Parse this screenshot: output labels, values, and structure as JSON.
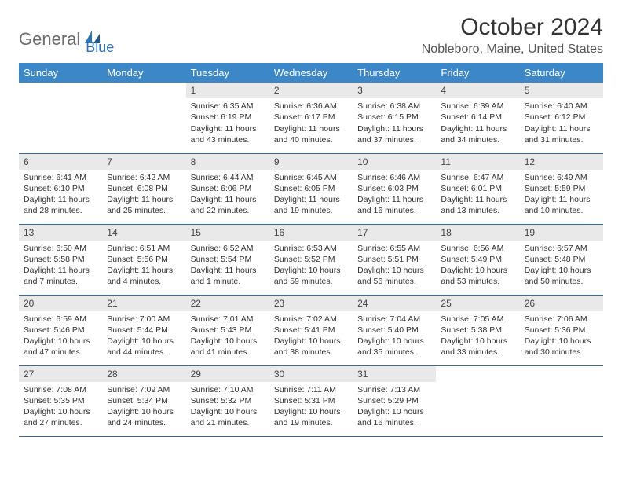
{
  "logo": {
    "part1": "General",
    "part2": "Blue"
  },
  "title": "October 2024",
  "location": "Nobleboro, Maine, United States",
  "colors": {
    "header_bg": "#3b87c8",
    "header_text": "#ffffff",
    "daynum_bg": "#e9e9e9",
    "border": "#3b6a94",
    "logo_gray": "#6d6d6d",
    "logo_blue": "#2b74b8"
  },
  "weekdays": [
    "Sunday",
    "Monday",
    "Tuesday",
    "Wednesday",
    "Thursday",
    "Friday",
    "Saturday"
  ],
  "weeks": [
    [
      null,
      null,
      {
        "n": "1",
        "sunrise": "6:35 AM",
        "sunset": "6:19 PM",
        "daylight": "11 hours and 43 minutes."
      },
      {
        "n": "2",
        "sunrise": "6:36 AM",
        "sunset": "6:17 PM",
        "daylight": "11 hours and 40 minutes."
      },
      {
        "n": "3",
        "sunrise": "6:38 AM",
        "sunset": "6:15 PM",
        "daylight": "11 hours and 37 minutes."
      },
      {
        "n": "4",
        "sunrise": "6:39 AM",
        "sunset": "6:14 PM",
        "daylight": "11 hours and 34 minutes."
      },
      {
        "n": "5",
        "sunrise": "6:40 AM",
        "sunset": "6:12 PM",
        "daylight": "11 hours and 31 minutes."
      }
    ],
    [
      {
        "n": "6",
        "sunrise": "6:41 AM",
        "sunset": "6:10 PM",
        "daylight": "11 hours and 28 minutes."
      },
      {
        "n": "7",
        "sunrise": "6:42 AM",
        "sunset": "6:08 PM",
        "daylight": "11 hours and 25 minutes."
      },
      {
        "n": "8",
        "sunrise": "6:44 AM",
        "sunset": "6:06 PM",
        "daylight": "11 hours and 22 minutes."
      },
      {
        "n": "9",
        "sunrise": "6:45 AM",
        "sunset": "6:05 PM",
        "daylight": "11 hours and 19 minutes."
      },
      {
        "n": "10",
        "sunrise": "6:46 AM",
        "sunset": "6:03 PM",
        "daylight": "11 hours and 16 minutes."
      },
      {
        "n": "11",
        "sunrise": "6:47 AM",
        "sunset": "6:01 PM",
        "daylight": "11 hours and 13 minutes."
      },
      {
        "n": "12",
        "sunrise": "6:49 AM",
        "sunset": "5:59 PM",
        "daylight": "11 hours and 10 minutes."
      }
    ],
    [
      {
        "n": "13",
        "sunrise": "6:50 AM",
        "sunset": "5:58 PM",
        "daylight": "11 hours and 7 minutes."
      },
      {
        "n": "14",
        "sunrise": "6:51 AM",
        "sunset": "5:56 PM",
        "daylight": "11 hours and 4 minutes."
      },
      {
        "n": "15",
        "sunrise": "6:52 AM",
        "sunset": "5:54 PM",
        "daylight": "11 hours and 1 minute."
      },
      {
        "n": "16",
        "sunrise": "6:53 AM",
        "sunset": "5:52 PM",
        "daylight": "10 hours and 59 minutes."
      },
      {
        "n": "17",
        "sunrise": "6:55 AM",
        "sunset": "5:51 PM",
        "daylight": "10 hours and 56 minutes."
      },
      {
        "n": "18",
        "sunrise": "6:56 AM",
        "sunset": "5:49 PM",
        "daylight": "10 hours and 53 minutes."
      },
      {
        "n": "19",
        "sunrise": "6:57 AM",
        "sunset": "5:48 PM",
        "daylight": "10 hours and 50 minutes."
      }
    ],
    [
      {
        "n": "20",
        "sunrise": "6:59 AM",
        "sunset": "5:46 PM",
        "daylight": "10 hours and 47 minutes."
      },
      {
        "n": "21",
        "sunrise": "7:00 AM",
        "sunset": "5:44 PM",
        "daylight": "10 hours and 44 minutes."
      },
      {
        "n": "22",
        "sunrise": "7:01 AM",
        "sunset": "5:43 PM",
        "daylight": "10 hours and 41 minutes."
      },
      {
        "n": "23",
        "sunrise": "7:02 AM",
        "sunset": "5:41 PM",
        "daylight": "10 hours and 38 minutes."
      },
      {
        "n": "24",
        "sunrise": "7:04 AM",
        "sunset": "5:40 PM",
        "daylight": "10 hours and 35 minutes."
      },
      {
        "n": "25",
        "sunrise": "7:05 AM",
        "sunset": "5:38 PM",
        "daylight": "10 hours and 33 minutes."
      },
      {
        "n": "26",
        "sunrise": "7:06 AM",
        "sunset": "5:36 PM",
        "daylight": "10 hours and 30 minutes."
      }
    ],
    [
      {
        "n": "27",
        "sunrise": "7:08 AM",
        "sunset": "5:35 PM",
        "daylight": "10 hours and 27 minutes."
      },
      {
        "n": "28",
        "sunrise": "7:09 AM",
        "sunset": "5:34 PM",
        "daylight": "10 hours and 24 minutes."
      },
      {
        "n": "29",
        "sunrise": "7:10 AM",
        "sunset": "5:32 PM",
        "daylight": "10 hours and 21 minutes."
      },
      {
        "n": "30",
        "sunrise": "7:11 AM",
        "sunset": "5:31 PM",
        "daylight": "10 hours and 19 minutes."
      },
      {
        "n": "31",
        "sunrise": "7:13 AM",
        "sunset": "5:29 PM",
        "daylight": "10 hours and 16 minutes."
      },
      null,
      null
    ]
  ],
  "labels": {
    "sunrise": "Sunrise: ",
    "sunset": "Sunset: ",
    "daylight": "Daylight: "
  }
}
